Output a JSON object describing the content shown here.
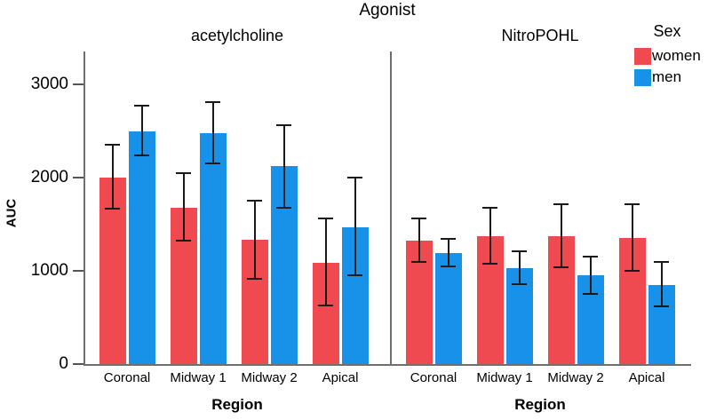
{
  "chart_data": {
    "type": "bar",
    "title": "Agonist",
    "xlabel": "Region",
    "ylabel": "AUC",
    "ylim": [
      0,
      3350
    ],
    "yticks": [
      0,
      1000,
      2000,
      3000
    ],
    "grid": false,
    "error_bars": true,
    "categories": [
      "Coronal",
      "Midway 1",
      "Midway 2",
      "Apical"
    ],
    "legend": {
      "title": "Sex",
      "position": "top-right",
      "entries": [
        {
          "label": "women",
          "color": "#ee4a4f"
        },
        {
          "label": "men",
          "color": "#1792e8"
        }
      ]
    },
    "panels": [
      {
        "title": "acetylcholine",
        "series": [
          {
            "name": "women",
            "values": [
              2000,
              1680,
              1330,
              1090
            ],
            "err_low": [
              1670,
              1320,
              910,
              630
            ],
            "err_high": [
              2350,
              2050,
              1750,
              1560
            ]
          },
          {
            "name": "men",
            "values": [
              2500,
              2480,
              2120,
              1470
            ],
            "err_low": [
              2240,
              2150,
              1680,
              950
            ],
            "err_high": [
              2770,
              2810,
              2560,
              2000
            ]
          }
        ]
      },
      {
        "title": "NitroPOHL",
        "series": [
          {
            "name": "women",
            "values": [
              1320,
              1370,
              1370,
              1350
            ],
            "err_low": [
              1100,
              1080,
              1040,
              1000
            ],
            "err_high": [
              1560,
              1680,
              1710,
              1710
            ]
          },
          {
            "name": "men",
            "values": [
              1190,
              1030,
              950,
              850
            ],
            "err_low": [
              1050,
              860,
              750,
              620
            ],
            "err_high": [
              1340,
              1210,
              1150,
              1100
            ]
          }
        ]
      }
    ],
    "colors": {
      "axis_line": "#6f6f6f",
      "error_bar": "#1a1a1a",
      "text": "#000000",
      "background": "#ffffff"
    }
  }
}
